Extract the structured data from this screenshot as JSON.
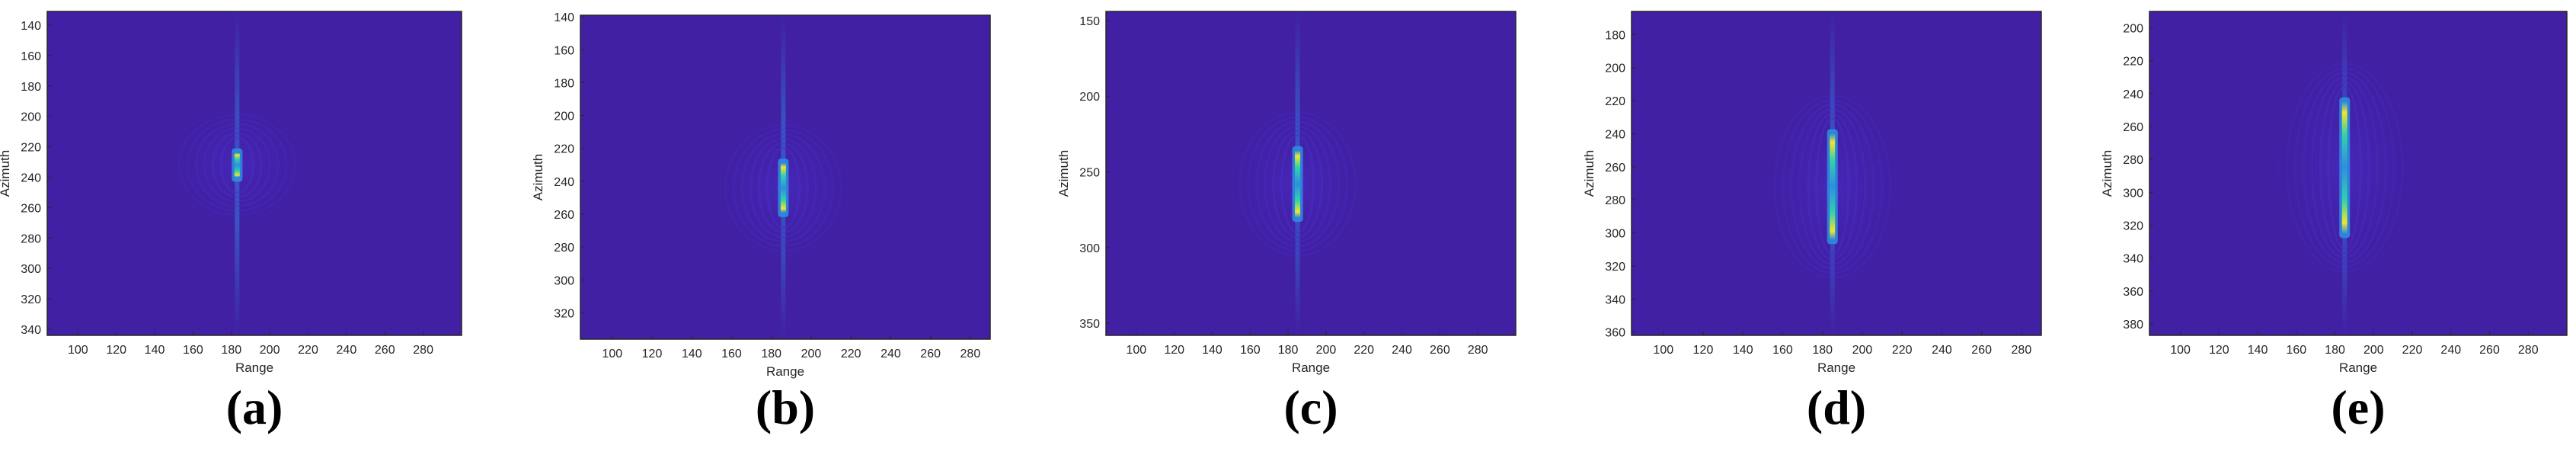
{
  "colors": {
    "background": "#4120a4",
    "low": "#4a2fcc",
    "mid": "#2d8fe0",
    "high": "#34d2a8",
    "peak": "#f2e52a"
  },
  "chart_data": [
    {
      "type": "heatmap",
      "panel_label": "(a)",
      "xlabel": "Range",
      "ylabel": "Azimuth",
      "xlim": [
        84,
        300
      ],
      "ylim": [
        344,
        131
      ],
      "y_reversed": true,
      "xticks": [
        "100",
        "120",
        "140",
        "160",
        "180",
        "200",
        "220",
        "240",
        "260",
        "280"
      ],
      "yticks": [
        "140",
        "160",
        "180",
        "200",
        "220",
        "240",
        "260",
        "280",
        "300",
        "320",
        "340"
      ],
      "target": {
        "range": 183,
        "azimuth_center": 232,
        "azimuth_half_length": 8
      }
    },
    {
      "type": "heatmap",
      "panel_label": "(b)",
      "xlabel": "Range",
      "ylabel": "Azimuth",
      "xlim": [
        84,
        290
      ],
      "ylim": [
        336,
        139
      ],
      "y_reversed": true,
      "xticks": [
        "100",
        "120",
        "140",
        "160",
        "180",
        "200",
        "220",
        "240",
        "260",
        "280"
      ],
      "yticks": [
        "140",
        "160",
        "180",
        "200",
        "220",
        "240",
        "260",
        "280",
        "300",
        "320"
      ],
      "target": {
        "range": 186,
        "azimuth_center": 244,
        "azimuth_half_length": 15
      }
    },
    {
      "type": "heatmap",
      "panel_label": "(c)",
      "xlabel": "Range",
      "ylabel": "Azimuth",
      "xlim": [
        84,
        300
      ],
      "ylim": [
        358,
        144
      ],
      "y_reversed": true,
      "xticks": [
        "100",
        "120",
        "140",
        "160",
        "180",
        "200",
        "220",
        "240",
        "260",
        "280"
      ],
      "yticks": [
        "150",
        "200",
        "250",
        "300",
        "350"
      ],
      "target": {
        "range": 185,
        "azimuth_center": 258,
        "azimuth_half_length": 22
      }
    },
    {
      "type": "heatmap",
      "panel_label": "(d)",
      "xlabel": "Range",
      "ylabel": "Azimuth",
      "xlim": [
        84,
        290
      ],
      "ylim": [
        362,
        166
      ],
      "y_reversed": true,
      "xticks": [
        "100",
        "120",
        "140",
        "160",
        "180",
        "200",
        "220",
        "240",
        "260",
        "280"
      ],
      "yticks": [
        "180",
        "200",
        "220",
        "240",
        "260",
        "280",
        "300",
        "320",
        "340",
        "360"
      ],
      "target": {
        "range": 185,
        "azimuth_center": 272,
        "azimuth_half_length": 32
      }
    },
    {
      "type": "heatmap",
      "panel_label": "(e)",
      "xlabel": "Range",
      "ylabel": "Azimuth",
      "xlim": [
        84,
        300
      ],
      "ylim": [
        387,
        190
      ],
      "y_reversed": true,
      "xticks": [
        "100",
        "120",
        "140",
        "160",
        "180",
        "200",
        "220",
        "240",
        "260",
        "280"
      ],
      "yticks": [
        "200",
        "220",
        "240",
        "260",
        "280",
        "300",
        "320",
        "340",
        "360",
        "380"
      ],
      "target": {
        "range": 185,
        "azimuth_center": 285,
        "azimuth_half_length": 40
      }
    }
  ]
}
